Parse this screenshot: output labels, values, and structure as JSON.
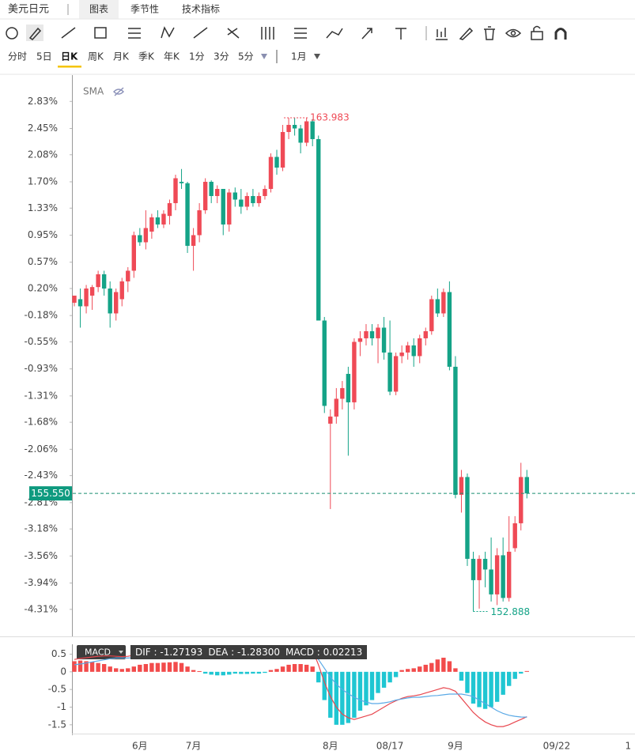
{
  "header": {
    "title": "美元日元",
    "tabs": [
      "图表",
      "季节性",
      "技术指标"
    ],
    "active_tab": 0
  },
  "periods": {
    "items": [
      "分时",
      "5日",
      "日K",
      "周K",
      "月K",
      "季K",
      "年K",
      "1分",
      "3分",
      "5分"
    ],
    "active": 2,
    "range": "1月"
  },
  "overlay": "SMA",
  "chart_data": [
    {
      "type": "candlestick",
      "up_color": "#ef4a56",
      "down_color": "#14a387",
      "categories": [
        null,
        null,
        null,
        null,
        null,
        null,
        null,
        null,
        null,
        null,
        null,
        "6月",
        null,
        null,
        null,
        null,
        null,
        null,
        null,
        null,
        "7月",
        null,
        null,
        null,
        null,
        null,
        null,
        null,
        null,
        null,
        null,
        null,
        null,
        null,
        null,
        null,
        null,
        null,
        null,
        null,
        null,
        null,
        null,
        "8月",
        null,
        null,
        null,
        null,
        null,
        null,
        null,
        null,
        null,
        "08/17",
        null,
        null,
        null,
        null,
        null,
        null,
        null,
        null,
        null,
        null,
        "9月",
        null,
        null,
        null,
        null,
        null,
        null,
        null,
        null,
        null,
        null,
        null,
        null,
        null,
        null,
        null,
        null,
        "09/22",
        null,
        null,
        null,
        null,
        null,
        null,
        null,
        null,
        null,
        null,
        null,
        "1"
      ],
      "values": [
        [
          0.0,
          0.1,
          -0.05,
          0.1
        ],
        [
          0.05,
          0.2,
          -0.35,
          -0.05
        ],
        [
          -0.05,
          0.25,
          -0.15,
          0.2
        ],
        [
          0.1,
          0.25,
          -0.1,
          0.22
        ],
        [
          0.22,
          0.45,
          0.15,
          0.4
        ],
        [
          0.4,
          0.45,
          0.1,
          0.2
        ],
        [
          0.2,
          0.3,
          -0.35,
          -0.15
        ],
        [
          -0.15,
          0.2,
          -0.25,
          0.15
        ],
        [
          0.05,
          0.35,
          -0.05,
          0.3
        ],
        [
          0.3,
          0.5,
          0.15,
          0.45
        ],
        [
          0.45,
          1.0,
          0.35,
          0.95
        ],
        [
          0.95,
          1.05,
          0.8,
          0.85
        ],
        [
          0.85,
          1.3,
          0.75,
          1.05
        ],
        [
          1.0,
          1.25,
          0.9,
          1.2
        ],
        [
          1.2,
          1.3,
          1.05,
          1.1
        ],
        [
          1.1,
          1.3,
          1.05,
          1.25
        ],
        [
          1.22,
          1.45,
          1.1,
          1.4
        ],
        [
          1.4,
          1.8,
          1.3,
          1.75
        ],
        [
          1.7,
          1.88,
          1.6,
          1.68
        ],
        [
          1.68,
          1.7,
          0.7,
          0.8
        ],
        [
          0.8,
          1.05,
          0.45,
          0.95
        ],
        [
          0.95,
          1.4,
          0.85,
          1.3
        ],
        [
          1.3,
          1.75,
          1.25,
          1.7
        ],
        [
          1.7,
          1.72,
          1.4,
          1.5
        ],
        [
          1.5,
          1.65,
          1.4,
          1.6
        ],
        [
          1.6,
          1.6,
          0.95,
          1.1
        ],
        [
          1.1,
          1.6,
          1.0,
          1.55
        ],
        [
          1.55,
          1.62,
          1.35,
          1.45
        ],
        [
          1.45,
          1.6,
          1.25,
          1.35
        ],
        [
          1.35,
          1.55,
          1.3,
          1.5
        ],
        [
          1.5,
          1.6,
          1.35,
          1.4
        ],
        [
          1.4,
          1.55,
          1.35,
          1.5
        ],
        [
          1.5,
          1.65,
          1.45,
          1.6
        ],
        [
          1.6,
          2.1,
          1.55,
          2.05
        ],
        [
          2.05,
          2.15,
          1.8,
          1.9
        ],
        [
          1.9,
          2.5,
          1.85,
          2.4
        ],
        [
          2.4,
          2.6,
          2.3,
          2.5
        ],
        [
          2.5,
          2.6,
          2.35,
          2.45
        ],
        [
          2.45,
          2.5,
          2.1,
          2.25
        ],
        [
          2.25,
          2.6,
          2.2,
          2.55
        ],
        [
          2.55,
          2.58,
          2.2,
          2.3
        ],
        [
          2.3,
          2.35,
          -0.2,
          -0.25
        ],
        [
          -0.25,
          -0.2,
          -1.55,
          -1.45
        ],
        [
          -1.7,
          -1.5,
          -2.9,
          -1.6
        ],
        [
          -1.6,
          -1.2,
          -1.7,
          -1.35
        ],
        [
          -1.35,
          -1.1,
          -1.5,
          -1.2
        ],
        [
          -1.0,
          -0.9,
          -2.15,
          -1.4
        ],
        [
          -1.4,
          -0.5,
          -1.5,
          -0.55
        ],
        [
          -0.55,
          -0.4,
          -0.75,
          -0.5
        ],
        [
          -0.5,
          -0.3,
          -0.6,
          -0.4
        ],
        [
          -0.4,
          -0.3,
          -0.6,
          -0.5
        ],
        [
          -0.5,
          -0.3,
          -0.85,
          -0.35
        ],
        [
          -0.35,
          -0.2,
          -0.8,
          -0.7
        ],
        [
          -0.7,
          -0.25,
          -1.3,
          -1.25
        ],
        [
          -1.25,
          -0.7,
          -1.3,
          -0.75
        ],
        [
          -0.75,
          -0.6,
          -0.85,
          -0.7
        ],
        [
          -0.7,
          -0.55,
          -0.8,
          -0.6
        ],
        [
          -0.6,
          -0.5,
          -0.9,
          -0.75
        ],
        [
          -0.75,
          -0.45,
          -0.85,
          -0.5
        ],
        [
          -0.5,
          -0.35,
          -0.6,
          -0.4
        ],
        [
          -0.4,
          0.1,
          -0.45,
          0.05
        ],
        [
          0.05,
          0.2,
          -0.2,
          -0.15
        ],
        [
          -0.15,
          0.2,
          -0.2,
          0.15
        ],
        [
          0.15,
          0.3,
          -0.95,
          -0.9
        ],
        [
          -0.9,
          -0.75,
          -2.75,
          -2.7
        ],
        [
          -2.7,
          -2.35,
          -2.95,
          -2.45
        ],
        [
          -2.45,
          -2.4,
          -3.7,
          -3.6
        ],
        [
          -3.6,
          -3.5,
          -4.34,
          -3.9
        ],
        [
          -3.9,
          -3.55,
          -4.3,
          -3.6
        ],
        [
          -3.6,
          -3.5,
          -4.0,
          -3.75
        ],
        [
          -3.75,
          -3.3,
          -4.2,
          -4.1
        ],
        [
          -4.1,
          -3.45,
          -4.25,
          -3.55
        ],
        [
          -3.55,
          -3.3,
          -4.2,
          -4.15
        ],
        [
          -4.15,
          -3.0,
          -4.2,
          -3.5
        ],
        [
          -3.45,
          -3.0,
          -3.5,
          -3.1
        ],
        [
          -3.1,
          -2.25,
          -3.2,
          -2.45
        ],
        [
          -2.45,
          -2.35,
          -2.75,
          -2.68
        ],
        null,
        null,
        null,
        null,
        null,
        null,
        null,
        null,
        null,
        null,
        null,
        null,
        null,
        null,
        null,
        null,
        null
      ],
      "ylim": [
        -4.69,
        3.2
      ],
      "yticks": [
        {
          "value": 2.83,
          "label": "2.83%"
        },
        {
          "value": 2.45,
          "label": "2.45%"
        },
        {
          "value": 2.08,
          "label": "2.08%"
        },
        {
          "value": 1.7,
          "label": "1.70%"
        },
        {
          "value": 1.33,
          "label": "1.33%"
        },
        {
          "value": 0.95,
          "label": "0.95%"
        },
        {
          "value": 0.57,
          "label": "0.57%"
        },
        {
          "value": 0.2,
          "label": "0.20%"
        },
        {
          "value": -0.18,
          "label": "-0.18%"
        },
        {
          "value": -0.55,
          "label": "-0.55%"
        },
        {
          "value": -0.93,
          "label": "-0.93%"
        },
        {
          "value": -1.31,
          "label": "-1.31%"
        },
        {
          "value": -1.68,
          "label": "-1.68%"
        },
        {
          "value": -2.06,
          "label": "-2.06%"
        },
        {
          "value": -2.43,
          "label": "-2.43%"
        },
        {
          "value": -2.81,
          "label": "-2.81%"
        },
        {
          "value": -3.18,
          "label": "-3.18%"
        },
        {
          "value": -3.56,
          "label": "-3.56%"
        },
        {
          "value": -3.94,
          "label": "-3.94%"
        },
        {
          "value": -4.31,
          "label": "-4.31%"
        }
      ],
      "high_label": "163.983",
      "low_label": "152.888",
      "last_label": "155.550",
      "price_line": true,
      "grid": false
    },
    {
      "type": "macd",
      "indicator": "MACD",
      "series": [
        {
          "name": "DIF",
          "color": "#e8474f",
          "values": [
            0.35,
            0.38,
            0.4,
            0.42,
            0.44,
            0.45,
            0.45,
            0.44,
            0.43,
            0.44,
            0.47,
            0.5,
            0.53,
            0.57,
            0.6,
            0.63,
            0.66,
            0.7,
            0.72,
            0.7,
            0.65,
            0.62,
            0.6,
            0.6,
            0.58,
            0.56,
            0.55,
            0.55,
            0.54,
            0.53,
            0.53,
            0.53,
            0.54,
            0.57,
            0.6,
            0.65,
            0.7,
            0.72,
            0.72,
            0.7,
            0.62,
            0.2,
            -0.3,
            -0.7,
            -1.0,
            -1.2,
            -1.3,
            -1.35,
            -1.3,
            -1.25,
            -1.2,
            -1.1,
            -1.0,
            -0.9,
            -0.82,
            -0.75,
            -0.7,
            -0.68,
            -0.65,
            -0.6,
            -0.55,
            -0.5,
            -0.45,
            -0.48,
            -0.55,
            -0.75,
            -0.95,
            -1.15,
            -1.3,
            -1.42,
            -1.5,
            -1.55,
            -1.55,
            -1.5,
            -1.42,
            -1.35,
            -1.27193
          ]
        },
        {
          "name": "DEA",
          "color": "#5aa9e6",
          "values": [
            0.2,
            0.22,
            0.25,
            0.28,
            0.31,
            0.34,
            0.37,
            0.39,
            0.39,
            0.39,
            0.4,
            0.4,
            0.42,
            0.45,
            0.48,
            0.5,
            0.53,
            0.56,
            0.6,
            0.62,
            0.62,
            0.61,
            0.62,
            0.64,
            0.63,
            0.61,
            0.59,
            0.58,
            0.57,
            0.56,
            0.55,
            0.55,
            0.55,
            0.55,
            0.56,
            0.58,
            0.6,
            0.61,
            0.61,
            0.6,
            0.55,
            0.35,
            0.1,
            -0.15,
            -0.35,
            -0.5,
            -0.62,
            -0.72,
            -0.8,
            -0.86,
            -0.9,
            -0.9,
            -0.88,
            -0.85,
            -0.8,
            -0.77,
            -0.74,
            -0.72,
            -0.72,
            -0.7,
            -0.68,
            -0.67,
            -0.65,
            -0.63,
            -0.63,
            -0.63,
            -0.66,
            -0.7,
            -0.8,
            -0.9,
            -1.0,
            -1.1,
            -1.18,
            -1.23,
            -1.26,
            -1.28,
            -1.283
          ],
          "value_labels": [
            null,
            null,
            null,
            null,
            null,
            null,
            null,
            null,
            null,
            null,
            null,
            null,
            null,
            null,
            null,
            null,
            null,
            null,
            null,
            null,
            null,
            null,
            null,
            null,
            null,
            null,
            null,
            null,
            null,
            null,
            null,
            null,
            null,
            null,
            null,
            null,
            null,
            null,
            null,
            null,
            null,
            null,
            null,
            null,
            null,
            null,
            null,
            null,
            null,
            null,
            null,
            null,
            null,
            null,
            null,
            null,
            null,
            null,
            null,
            null,
            null,
            null,
            null,
            null,
            null,
            null,
            null,
            null,
            null,
            null,
            null,
            null,
            null,
            null,
            null,
            null,
            "-1.28300"
          ]
        },
        {
          "name": "MACD",
          "up_color": "#f24b4b",
          "down_color": "#1fc6d2",
          "values": [
            0.3,
            0.32,
            0.3,
            0.28,
            0.25,
            0.22,
            0.15,
            0.1,
            0.08,
            0.1,
            0.15,
            0.2,
            0.22,
            0.25,
            0.25,
            0.26,
            0.27,
            0.28,
            0.25,
            0.15,
            0.05,
            0.02,
            -0.05,
            -0.08,
            -0.1,
            -0.1,
            -0.08,
            -0.05,
            -0.06,
            -0.06,
            -0.05,
            -0.05,
            -0.03,
            0.05,
            0.08,
            0.15,
            0.2,
            0.22,
            0.22,
            0.2,
            0.15,
            -0.3,
            -0.8,
            -1.3,
            -1.5,
            -1.5,
            -1.45,
            -1.3,
            -1.1,
            -0.95,
            -0.8,
            -0.6,
            -0.45,
            -0.3,
            -0.15,
            0.05,
            0.08,
            0.1,
            0.15,
            0.2,
            0.25,
            0.35,
            0.4,
            0.3,
            0.1,
            -0.25,
            -0.6,
            -0.9,
            -1.0,
            -1.05,
            -1.0,
            -0.85,
            -0.65,
            -0.4,
            -0.2,
            -0.05,
            0.02213
          ]
        }
      ],
      "ylim": [
        -1.75,
        0.78
      ],
      "yticks": [
        0.5,
        0,
        -0.5,
        -1,
        -1.5
      ]
    }
  ]
}
